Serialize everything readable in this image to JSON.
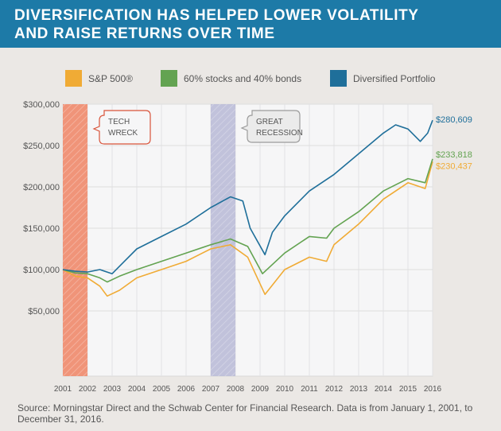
{
  "title": [
    "DIVERSIFICATION HAS HELPED LOWER VOLATILITY",
    "AND RAISE RETURNS OVER TIME"
  ],
  "source": "Source: Morningstar Direct and the Schwab Center for Financial Research. Data is from January 1, 2001, to December 31, 2016.",
  "chart_data": {
    "type": "line",
    "title": "DIVERSIFICATION HAS HELPED LOWER VOLATILITY AND RAISE RETURNS OVER TIME",
    "xlabel": "",
    "ylabel": "",
    "xlim": [
      2001,
      2016
    ],
    "ylim": [
      0,
      300000
    ],
    "x_ticks": [
      "2001",
      "2002",
      "2003",
      "2004",
      "2005",
      "2006",
      "2007",
      "2008",
      "2009",
      "2010",
      "2011",
      "2012",
      "2013",
      "2014",
      "2015",
      "2016"
    ],
    "y_ticks": [
      "$300,000",
      "$250,000",
      "$200,000",
      "$150,000",
      "$100,000",
      "$50,000"
    ],
    "y_tick_values": [
      300000,
      250000,
      200000,
      150000,
      100000,
      50000
    ],
    "legend_position": "top",
    "shaded_periods": [
      {
        "label": [
          "TECH",
          "WRECK"
        ],
        "from": 2001,
        "to": 2002,
        "color": "#ef8e72"
      },
      {
        "label": [
          "GREAT",
          "RECESSION"
        ],
        "from": 2007,
        "to": 2008,
        "color": "#b7b9d6"
      }
    ],
    "series": [
      {
        "name": "S&P 500®",
        "color": "#f0ab35",
        "end_label": "$230,437",
        "x": [
          2001,
          2001.5,
          2002,
          2002.5,
          2002.8,
          2003.3,
          2004,
          2005,
          2006,
          2007,
          2007.8,
          2008.5,
          2009.2,
          2010,
          2011,
          2011.7,
          2012,
          2013,
          2014,
          2015,
          2015.7,
          2016
        ],
        "y": [
          100000,
          92000,
          90000,
          80000,
          68000,
          75000,
          90000,
          100000,
          110000,
          125000,
          130000,
          115000,
          70000,
          100000,
          115000,
          110000,
          130000,
          155000,
          185000,
          205000,
          198000,
          230437
        ]
      },
      {
        "name": "60% stocks and 40% bonds",
        "color": "#63a351",
        "end_label": "$233,818",
        "x": [
          2001,
          2001.5,
          2002,
          2002.5,
          2002.8,
          2003.3,
          2004,
          2005,
          2006,
          2007,
          2007.8,
          2008.5,
          2009.1,
          2010,
          2011,
          2011.7,
          2012,
          2013,
          2014,
          2015,
          2015.7,
          2016
        ],
        "y": [
          100000,
          96000,
          95000,
          90000,
          85000,
          92000,
          100000,
          110000,
          120000,
          130000,
          137000,
          128000,
          95000,
          120000,
          140000,
          138000,
          150000,
          170000,
          195000,
          210000,
          205000,
          233818
        ]
      },
      {
        "name": "Diversified Portfolio",
        "color": "#1f6f9a",
        "end_label": "$280,609",
        "x": [
          2001,
          2001.5,
          2002,
          2002.5,
          2003,
          2003.5,
          2004,
          2005,
          2006,
          2007,
          2007.8,
          2008.3,
          2008.6,
          2009.2,
          2009.5,
          2010,
          2011,
          2011.5,
          2012,
          2013,
          2014,
          2014.5,
          2015,
          2015.5,
          2015.8,
          2016
        ],
        "y": [
          100000,
          98000,
          97000,
          100000,
          95000,
          110000,
          125000,
          140000,
          155000,
          175000,
          188000,
          183000,
          150000,
          118000,
          145000,
          165000,
          195000,
          205000,
          215000,
          240000,
          265000,
          275000,
          270000,
          255000,
          265000,
          280609
        ]
      }
    ]
  }
}
